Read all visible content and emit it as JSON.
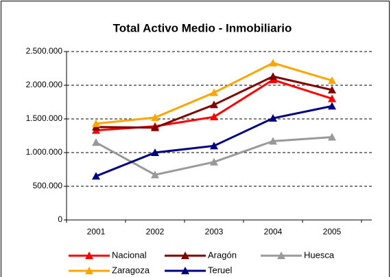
{
  "chart_data": {
    "type": "line",
    "title": "Total Activo Medio - Inmobiliario",
    "categories": [
      "2001",
      "2002",
      "2003",
      "2004",
      "2005"
    ],
    "series": [
      {
        "name": "Nacional",
        "color": "#ff0000",
        "values": [
          1330000,
          1390000,
          1530000,
          2080000,
          1800000
        ]
      },
      {
        "name": "Aragón",
        "color": "#800000",
        "values": [
          1380000,
          1370000,
          1710000,
          2130000,
          1930000
        ]
      },
      {
        "name": "Huesca",
        "color": "#999999",
        "values": [
          1150000,
          670000,
          860000,
          1170000,
          1230000
        ]
      },
      {
        "name": "Zaragoza",
        "color": "#ffa500",
        "values": [
          1430000,
          1520000,
          1890000,
          2330000,
          2070000
        ]
      },
      {
        "name": "Teruel",
        "color": "#000080",
        "values": [
          650000,
          1000000,
          1100000,
          1510000,
          1690000
        ]
      }
    ],
    "ylim": [
      0,
      2500000
    ],
    "yticks": [
      0,
      {
        "value": 500000,
        "label": "500.000"
      },
      {
        "value": 1000000,
        "label": "1.000.000"
      },
      {
        "value": 1500000,
        "label": "1.500.000"
      },
      {
        "value": 2000000,
        "label": "2.000.000"
      },
      {
        "value": 2500000,
        "label": "2.500.000"
      }
    ],
    "grid": true
  }
}
